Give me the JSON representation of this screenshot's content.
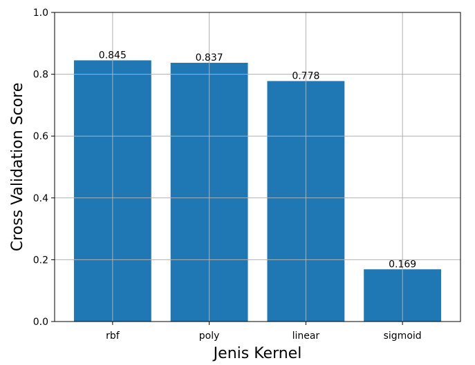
{
  "chart_data": {
    "type": "bar",
    "categories": [
      "rbf",
      "poly",
      "linear",
      "sigmoid"
    ],
    "values": [
      0.845,
      0.837,
      0.778,
      0.169
    ],
    "data_labels": [
      "0.845",
      "0.837",
      "0.778",
      "0.169"
    ],
    "xlabel": "Jenis Kernel",
    "ylabel": "Cross Validation Score",
    "ylim": [
      0.0,
      1.0
    ],
    "yticks": [
      "0.0",
      "0.2",
      "0.4",
      "0.6",
      "0.8",
      "1.0"
    ],
    "grid": true,
    "bar_color": "#1f77b4",
    "grid_color": "#b0b0b0"
  }
}
